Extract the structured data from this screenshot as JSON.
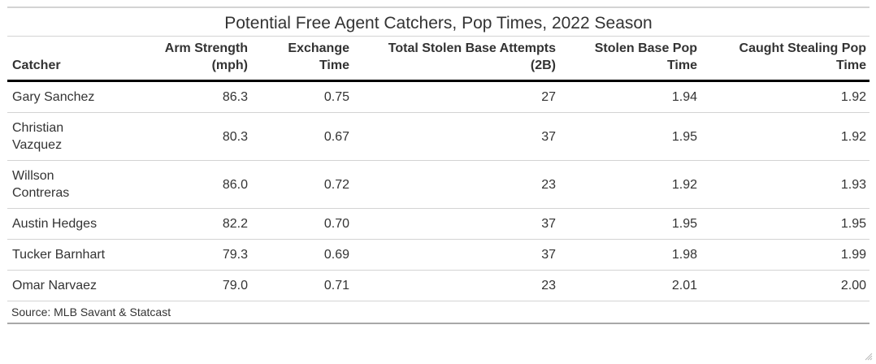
{
  "table": {
    "title": "Potential Free Agent Catchers, Pop Times, 2022 Season",
    "columns": [
      {
        "label": "Catcher",
        "line1": "",
        "line2": "Catcher",
        "align": "left"
      },
      {
        "label": "Arm Strength (mph)",
        "line1": "Arm Strength",
        "line2": "(mph)",
        "align": "right"
      },
      {
        "label": "Exchange Time",
        "line1": "Exchange",
        "line2": "Time",
        "align": "right"
      },
      {
        "label": "Total Stolen Base Attempts (2B)",
        "line1": "Total Stolen Base Attempts",
        "line2": "(2B)",
        "align": "right"
      },
      {
        "label": "Stolen Base Pop Time",
        "line1": "Stolen Base Pop",
        "line2": "Time",
        "align": "right"
      },
      {
        "label": "Caught Stealing Pop Time",
        "line1": "Caught Stealing Pop",
        "line2": "Time",
        "align": "right"
      }
    ],
    "rows": [
      {
        "catcher": "Gary Sanchez",
        "catcher_line1": "Gary Sanchez",
        "catcher_line2": "",
        "arm_strength": "86.3",
        "exchange_time": "0.75",
        "sb_attempts": "27",
        "sb_pop_time": "1.94",
        "cs_pop_time": "1.92"
      },
      {
        "catcher": "Christian Vazquez",
        "catcher_line1": "Christian",
        "catcher_line2": "Vazquez",
        "arm_strength": "80.3",
        "exchange_time": "0.67",
        "sb_attempts": "37",
        "sb_pop_time": "1.95",
        "cs_pop_time": "1.92"
      },
      {
        "catcher": "Willson Contreras",
        "catcher_line1": "Willson",
        "catcher_line2": "Contreras",
        "arm_strength": "86.0",
        "exchange_time": "0.72",
        "sb_attempts": "23",
        "sb_pop_time": "1.92",
        "cs_pop_time": "1.93"
      },
      {
        "catcher": "Austin Hedges",
        "catcher_line1": "Austin Hedges",
        "catcher_line2": "",
        "arm_strength": "82.2",
        "exchange_time": "0.70",
        "sb_attempts": "37",
        "sb_pop_time": "1.95",
        "cs_pop_time": "1.95"
      },
      {
        "catcher": "Tucker Barnhart",
        "catcher_line1": "Tucker Barnhart",
        "catcher_line2": "",
        "arm_strength": "79.3",
        "exchange_time": "0.69",
        "sb_attempts": "37",
        "sb_pop_time": "1.98",
        "cs_pop_time": "1.99"
      },
      {
        "catcher": "Omar Narvaez",
        "catcher_line1": "Omar Narvaez",
        "catcher_line2": "",
        "arm_strength": "79.0",
        "exchange_time": "0.71",
        "sb_attempts": "23",
        "sb_pop_time": "2.01",
        "cs_pop_time": "2.00"
      }
    ],
    "source_note": "Source: MLB Savant & Statcast"
  },
  "icons": {
    "resize_grip": "resize-grip-icon"
  },
  "colors": {
    "text": "#333333",
    "header_rule": "#000000",
    "row_rule": "#d3d3d3",
    "footer_rule": "#a8a8a8"
  }
}
